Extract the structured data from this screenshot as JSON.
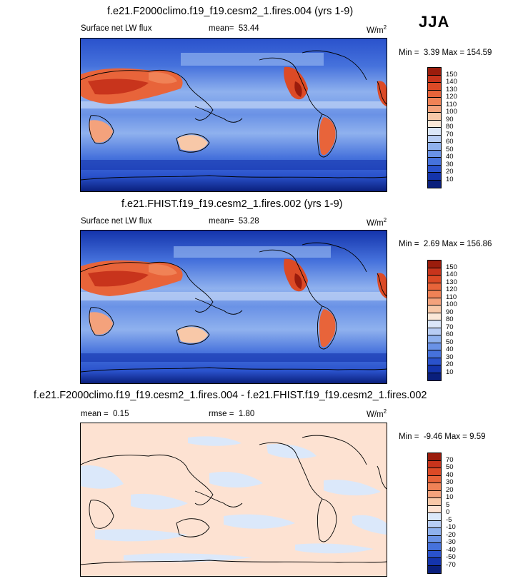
{
  "season": "JJA",
  "units_sup": "2",
  "panels": [
    {
      "title": "f.e21.F2000climo.f19_f19.cesm2_1.fires.004 (yrs 1-9)",
      "variable": "Surface net LW flux",
      "stat_label": "mean=",
      "stat_value": "53.44",
      "units": "W/m",
      "min_label": "Min =",
      "min_value": "3.39",
      "max_label": "Max =",
      "max_value": "154.59",
      "colorbar_labels": [
        "150",
        "140",
        "130",
        "120",
        "110",
        "100",
        "90",
        "80",
        "70",
        "60",
        "50",
        "40",
        "30",
        "20",
        "10"
      ],
      "colorbar_colors": [
        "#9b1c0c",
        "#c8341c",
        "#dc4a26",
        "#e8643a",
        "#f08256",
        "#f4a27c",
        "#f8c8a8",
        "#fbe8d8",
        "#dbe6f8",
        "#b8cdf4",
        "#8fb1ee",
        "#6a92e6",
        "#4672dc",
        "#2a52cc",
        "#1434ac",
        "#0a1f7c"
      ]
    },
    {
      "title": "f.e21.FHIST.f19_f19.cesm2_1.fires.002 (yrs 1-9)",
      "variable": "Surface net LW flux",
      "stat_label": "mean=",
      "stat_value": "53.28",
      "units": "W/m",
      "min_label": "Min =",
      "min_value": "2.69",
      "max_label": "Max =",
      "max_value": "156.86",
      "colorbar_labels": [
        "150",
        "140",
        "130",
        "120",
        "110",
        "100",
        "90",
        "80",
        "70",
        "60",
        "50",
        "40",
        "30",
        "20",
        "10"
      ],
      "colorbar_colors": [
        "#9b1c0c",
        "#c8341c",
        "#dc4a26",
        "#e8643a",
        "#f08256",
        "#f4a27c",
        "#f8c8a8",
        "#fbe8d8",
        "#dbe6f8",
        "#b8cdf4",
        "#8fb1ee",
        "#6a92e6",
        "#4672dc",
        "#2a52cc",
        "#1434ac",
        "#0a1f7c"
      ]
    },
    {
      "title": "f.e21.F2000climo.f19_f19.cesm2_1.fires.004 - f.e21.FHIST.f19_f19.cesm2_1.fires.002",
      "stat_label": "mean =",
      "stat_value": "0.15",
      "rmse_label": "rmse =",
      "rmse_value": "1.80",
      "units": "W/m",
      "min_label": "Min =",
      "min_value": "-9.46",
      "max_label": "Max =",
      "max_value": "9.59",
      "colorbar_labels": [
        "70",
        "50",
        "40",
        "30",
        "20",
        "10",
        "5",
        "0",
        "-5",
        "-10",
        "-20",
        "-30",
        "-40",
        "-50",
        "-70"
      ],
      "colorbar_colors": [
        "#9b1c0c",
        "#c8341c",
        "#dc4a26",
        "#e8643a",
        "#f08256",
        "#f4a27c",
        "#f8c8a8",
        "#fde2d2",
        "#dbe8fa",
        "#b8cdf4",
        "#8fb1ee",
        "#6a92e6",
        "#4672dc",
        "#2a52cc",
        "#1434ac",
        "#0a1f7c"
      ]
    }
  ]
}
